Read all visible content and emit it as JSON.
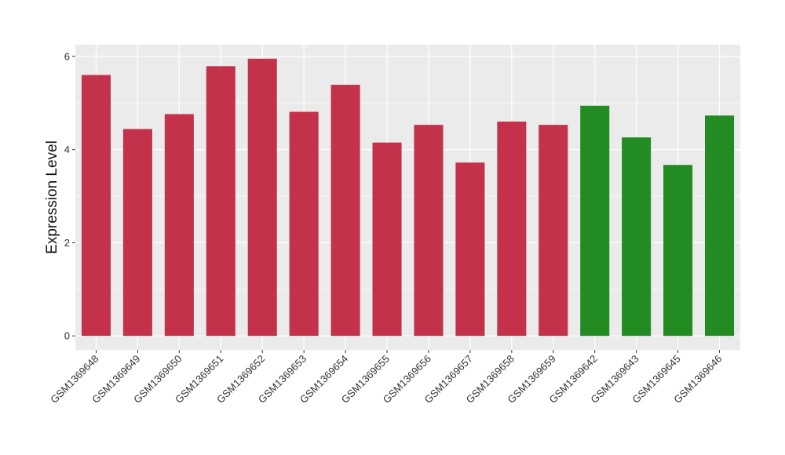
{
  "chart_data": {
    "type": "bar",
    "ylabel": "Expression Level",
    "xlabel": "",
    "ylim": [
      -0.3,
      6.25
    ],
    "yticks": [
      0,
      2,
      4,
      6
    ],
    "grid": true,
    "legend": "none",
    "categories": [
      "GSM1369648",
      "GSM1369649",
      "GSM1369650",
      "GSM1369651",
      "GSM1369652",
      "GSM1369653",
      "GSM1369654",
      "GSM1369655",
      "GSM1369656",
      "GSM1369657",
      "GSM1369658",
      "GSM1369659",
      "GSM1369642",
      "GSM1369643",
      "GSM1369645",
      "GSM1369646"
    ],
    "values": [
      5.6,
      4.44,
      4.76,
      5.79,
      5.95,
      4.81,
      5.39,
      4.15,
      4.53,
      3.72,
      4.6,
      4.53,
      4.94,
      4.26,
      3.67,
      4.73
    ],
    "group": [
      "a",
      "a",
      "a",
      "a",
      "a",
      "a",
      "a",
      "a",
      "a",
      "a",
      "a",
      "a",
      "b",
      "b",
      "b",
      "b"
    ],
    "colors": {
      "a": "#c4314b",
      "b": "#228b22"
    },
    "panel_background": "#ebebeb",
    "grid_color": "#ffffff"
  }
}
